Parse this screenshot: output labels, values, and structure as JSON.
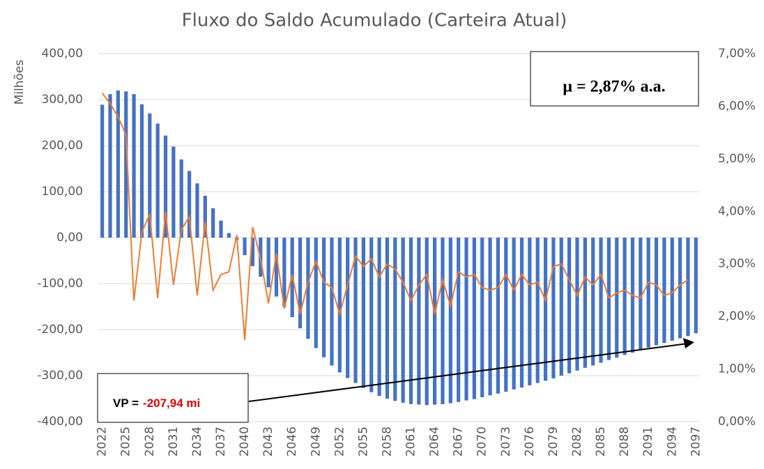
{
  "chart_data": {
    "type": "bar-line",
    "title": "Fluxo do Saldo Acumulado (Carteira Atual)",
    "y_label": "Milhões",
    "categories": [
      "2022",
      null,
      null,
      "2025",
      null,
      null,
      "2028",
      null,
      null,
      "2031",
      null,
      null,
      "2034",
      null,
      null,
      "2037",
      null,
      null,
      "2040",
      null,
      null,
      "2043",
      null,
      null,
      "2046",
      null,
      null,
      "2049",
      null,
      null,
      "2052",
      null,
      null,
      "2055",
      null,
      null,
      "2058",
      null,
      null,
      "2061",
      null,
      null,
      "2064",
      null,
      null,
      "2067",
      null,
      null,
      "2070",
      null,
      null,
      "2073",
      null,
      null,
      "2076",
      null,
      null,
      "2079",
      null,
      null,
      "2082",
      null,
      null,
      "2085",
      null,
      null,
      "2088",
      null,
      null,
      "2091",
      null,
      null,
      "2094",
      null,
      null,
      "2097"
    ],
    "series": [
      {
        "color": "#4472c4",
        "values": [
          289,
          312,
          320,
          318,
          312,
          290,
          270,
          248,
          222,
          198,
          170,
          145,
          118,
          91,
          64,
          37,
          10,
          -5,
          -38,
          -62,
          -85,
          -108,
          -128,
          -150,
          -173,
          -197,
          -220,
          -240,
          -260,
          -278,
          -293,
          -305,
          -316,
          -327,
          -336,
          -344,
          -350,
          -355,
          -359,
          -362,
          -363,
          -364,
          -363,
          -362,
          -360,
          -357,
          -354,
          -351,
          -347,
          -343,
          -339,
          -335,
          -330,
          -326,
          -321,
          -316,
          -311,
          -306,
          -300,
          -295,
          -289,
          -283,
          -278,
          -272,
          -266,
          -261,
          -255,
          -250,
          -244,
          -239,
          -234,
          -229,
          -224,
          -219,
          -214,
          -208
        ]
      },
      {
        "color": "#ed7d31",
        "axis": "y2",
        "values": [
          6.25,
          6.05,
          5.8,
          5.45,
          2.3,
          3.6,
          3.95,
          2.35,
          4.0,
          2.6,
          3.65,
          3.9,
          2.4,
          3.8,
          2.5,
          2.8,
          2.85,
          3.55,
          1.55,
          3.7,
          3.1,
          2.25,
          3.2,
          2.15,
          2.8,
          2.05,
          2.65,
          3.05,
          2.65,
          2.55,
          2.05,
          2.6,
          3.15,
          2.95,
          3.1,
          2.75,
          3.0,
          2.9,
          2.65,
          2.3,
          2.6,
          2.8,
          2.05,
          2.7,
          2.2,
          2.85,
          2.75,
          2.8,
          2.55,
          2.5,
          2.55,
          2.8,
          2.5,
          2.8,
          2.6,
          2.65,
          2.3,
          2.95,
          3.0,
          2.7,
          2.4,
          2.75,
          2.6,
          2.8,
          2.35,
          2.45,
          2.5,
          2.4,
          2.35,
          2.65,
          2.6,
          2.4,
          2.45,
          2.6,
          2.7,
          null
        ]
      }
    ],
    "ylim": [
      -400,
      400
    ],
    "yticks": [
      {
        "value": -400,
        "label": "-400,00"
      },
      {
        "value": -300,
        "label": "-300,00"
      },
      {
        "value": -200,
        "label": "-200,00"
      },
      {
        "value": -100,
        "label": "-100,00"
      },
      {
        "value": 0,
        "label": "0,00"
      },
      {
        "value": 100,
        "label": "100,00"
      },
      {
        "value": 200,
        "label": "200,00"
      },
      {
        "value": 300,
        "label": "300,00"
      },
      {
        "value": 400,
        "label": "400,00"
      }
    ],
    "y2lim": [
      0,
      7
    ],
    "y2ticks": [
      {
        "value": 0,
        "label": "0,00%"
      },
      {
        "value": 1,
        "label": "1,00%"
      },
      {
        "value": 2,
        "label": "2,00%"
      },
      {
        "value": 3,
        "label": "3,00%"
      },
      {
        "value": 4,
        "label": "4,00%"
      },
      {
        "value": 5,
        "label": "5,00%"
      },
      {
        "value": 6,
        "label": "6,00%"
      },
      {
        "value": 7,
        "label": "7,00%"
      }
    ],
    "grid": true,
    "annotations": {
      "mu": "μ = 2,87% a.a.",
      "vp_label": "VP =",
      "vp_value": "-207,94 mi"
    }
  }
}
